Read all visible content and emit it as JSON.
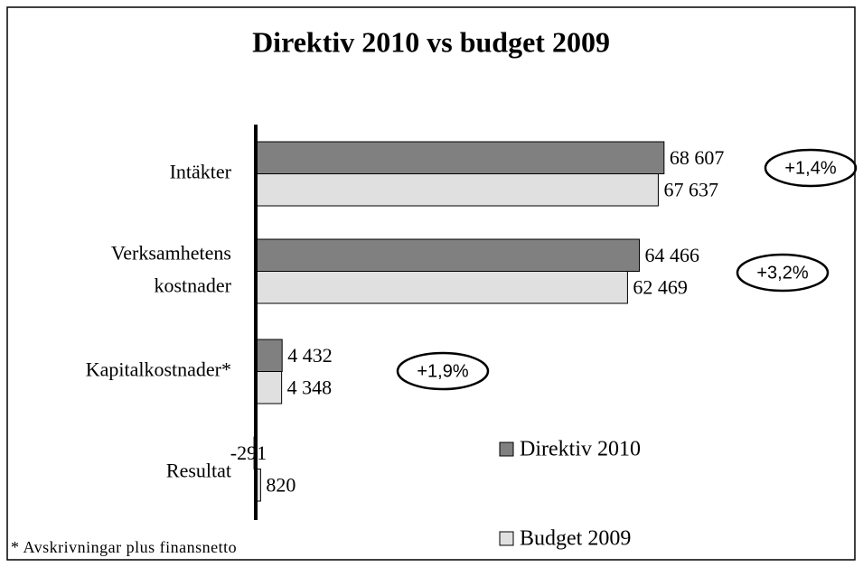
{
  "chart_data": {
    "type": "bar",
    "orientation": "horizontal",
    "title": "Direktiv 2010 vs budget 2009",
    "categories": [
      "Intäkter",
      "Verksamhetens\nkostnader",
      "Kapitalkostnader*",
      "Resultat"
    ],
    "series": [
      {
        "name": "Direktiv 2010",
        "color": "#808080",
        "values": [
          68607,
          64466,
          4432,
          -291
        ],
        "value_labels": [
          "68 607",
          "64 466",
          "4 432",
          "-291"
        ]
      },
      {
        "name": "Budget 2009",
        "color": "#e0e0e0",
        "values": [
          67637,
          62469,
          4348,
          820
        ],
        "value_labels": [
          "67 637",
          "62 469",
          "4 348",
          "820"
        ]
      }
    ],
    "xlim": [
      0,
      70000
    ],
    "annotations": [
      "+1,4%",
      "+3,2%",
      "+1,9%"
    ],
    "footnote": "* Avskrivningar plus finansnetto",
    "legend": "lower right"
  }
}
